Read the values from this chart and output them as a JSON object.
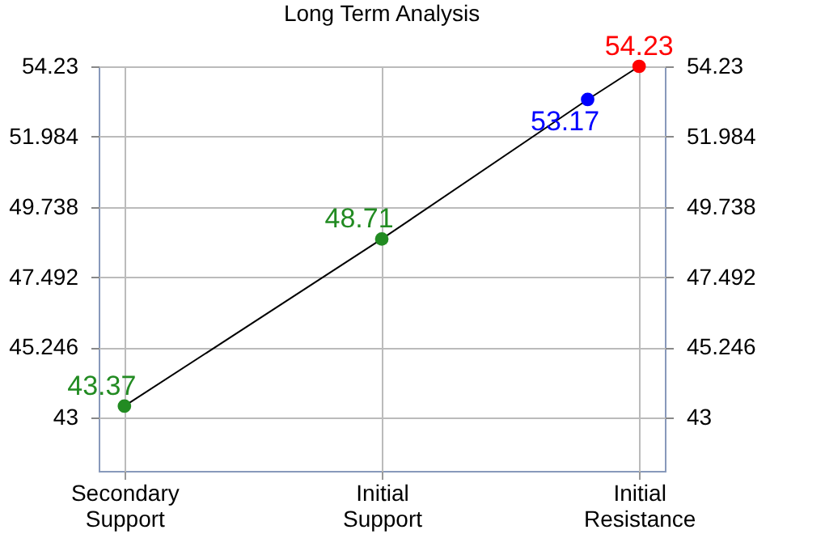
{
  "chart_data": {
    "type": "line",
    "title": "Long Term Analysis",
    "categories": [
      "Secondary\nSupport",
      null,
      null,
      null,
      null,
      "Initial\nSupport",
      null,
      null,
      null,
      null,
      "Initial\nResistance"
    ],
    "series": [
      {
        "color": "#000000",
        "colors": [
          "#228b22",
          null,
          null,
          null,
          null,
          "#228b22",
          null,
          null,
          null,
          "#0000ff",
          "#ff0000"
        ],
        "values": [
          43.37,
          null,
          null,
          null,
          null,
          48.71,
          null,
          null,
          null,
          53.17,
          54.23
        ]
      }
    ],
    "ylim": [
      41.3,
      54.23
    ],
    "yticks": [
      43,
      45.246,
      47.492,
      49.738,
      51.984,
      54.23
    ],
    "y2lim": [
      41.3,
      54.23
    ],
    "y2ticks": [
      43,
      45.246,
      47.492,
      49.738,
      51.984,
      54.23
    ],
    "grid": true,
    "marker": "circle",
    "data_labels": true
  }
}
